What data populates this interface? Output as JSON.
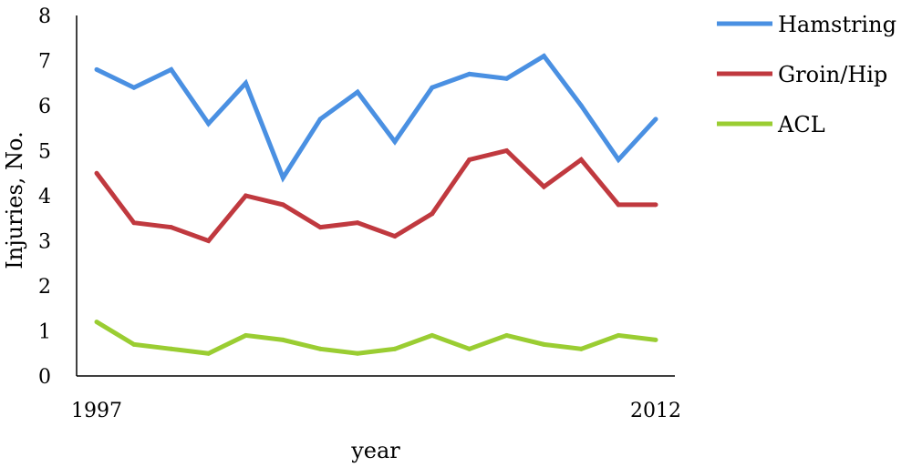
{
  "chart_data": {
    "type": "line",
    "xlabel": "year",
    "ylabel": "Injuries, No.",
    "x": [
      1997,
      1998,
      1999,
      2000,
      2001,
      2002,
      2003,
      2004,
      2005,
      2006,
      2007,
      2008,
      2009,
      2010,
      2011,
      2012
    ],
    "x_tick_labels": [
      {
        "x": 1997,
        "label": "1997"
      },
      {
        "x": 2012,
        "label": "2012"
      }
    ],
    "ylim": [
      0,
      8
    ],
    "yticks": [
      0,
      1,
      2,
      3,
      4,
      5,
      6,
      7,
      8
    ],
    "grid": false,
    "legend_position": "right",
    "series": [
      {
        "name": "Hamstring",
        "color": "#4A90E2",
        "values": [
          6.8,
          6.4,
          6.8,
          5.6,
          6.5,
          4.4,
          5.7,
          6.3,
          5.2,
          6.4,
          6.7,
          6.6,
          7.1,
          6.0,
          4.8,
          5.7
        ]
      },
      {
        "name": "Groin/Hip",
        "color": "#C0393F",
        "values": [
          4.5,
          3.4,
          3.3,
          3.0,
          4.0,
          3.8,
          3.3,
          3.4,
          3.1,
          3.6,
          4.8,
          5.0,
          4.2,
          4.8,
          3.8,
          3.8
        ]
      },
      {
        "name": "ACL",
        "color": "#9ACD32",
        "values": [
          1.2,
          0.7,
          0.6,
          0.5,
          0.9,
          0.8,
          0.6,
          0.5,
          0.6,
          0.9,
          0.6,
          0.9,
          0.7,
          0.6,
          0.9,
          0.8
        ]
      }
    ]
  }
}
